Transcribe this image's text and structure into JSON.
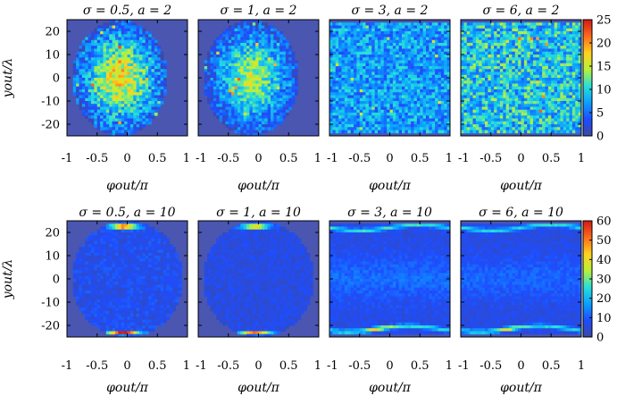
{
  "chart_data": {
    "type": "heatmap",
    "panel_ylim": [
      -25,
      25
    ],
    "panel_xlim": [
      -1,
      1
    ],
    "xticks": [
      "-1",
      "-0.5",
      "0",
      "0.5",
      "1"
    ],
    "xticks_last": [
      "-1",
      "-0.5",
      "0",
      "0.5",
      "1"
    ],
    "x_label_display": "φout/π",
    "y_label_display": "yout/λ",
    "colormap": [
      "#3b49a6",
      "#1e4dff",
      "#0aa0ff",
      "#28e0d8",
      "#b9f03a",
      "#ffd21e",
      "#ff6a1e",
      "#d01818"
    ],
    "background_color": "#4a56b0",
    "rows": [
      {
        "yticks": [
          "20",
          "10",
          "0",
          "-10",
          "-20"
        ],
        "colorbar": {
          "min": 0,
          "max": 25,
          "ticks": [
            "25",
            "20",
            "15",
            "10",
            "5",
            "0"
          ]
        },
        "panels": [
          {
            "title": "σ = 0.5,  a = 2",
            "sigma": 0.5,
            "a": 2,
            "pattern": "central-ellipse",
            "peak": 25
          },
          {
            "title": "σ = 1,  a = 2",
            "sigma": 1,
            "a": 2,
            "pattern": "central-ellipse",
            "peak": 21
          },
          {
            "title": "σ = 3,  a = 2",
            "sigma": 3,
            "a": 2,
            "pattern": "uniform",
            "peak": 17
          },
          {
            "title": "σ = 6,  a = 2",
            "sigma": 6,
            "a": 2,
            "pattern": "uniform",
            "peak": 22
          }
        ]
      },
      {
        "yticks": [
          "20",
          "10",
          "0",
          "-10",
          "-20"
        ],
        "colorbar": {
          "min": 0,
          "max": 60,
          "ticks": [
            "60",
            "50",
            "40",
            "30",
            "20",
            "10",
            "0"
          ]
        },
        "panels": [
          {
            "title": "σ = 0.5,  a = 10",
            "sigma": 0.5,
            "a": 10,
            "pattern": "edge-caps",
            "peak": 60
          },
          {
            "title": "σ = 1,  a = 10",
            "sigma": 1,
            "a": 10,
            "pattern": "edge-caps",
            "peak": 50
          },
          {
            "title": "σ = 3,  a = 10",
            "sigma": 3,
            "a": 10,
            "pattern": "edge-bands",
            "peak": 45
          },
          {
            "title": "σ = 6,  a = 10",
            "sigma": 6,
            "a": 10,
            "pattern": "edge-bands",
            "peak": 42
          }
        ]
      }
    ]
  }
}
